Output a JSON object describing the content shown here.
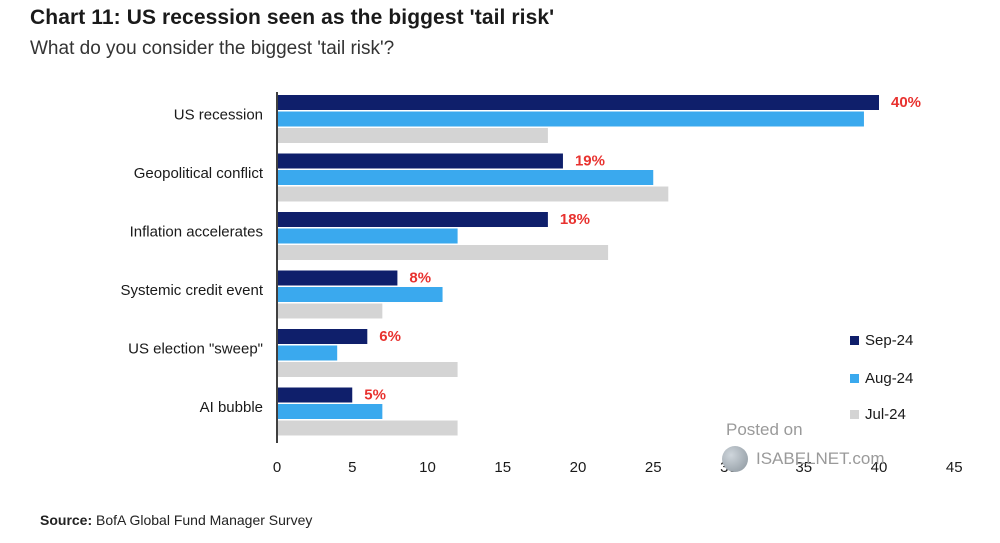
{
  "title": "Chart 11: US recession seen as the biggest 'tail risk'",
  "subtitle": "What do you consider the biggest 'tail risk'?",
  "source_label": "Source:",
  "source_text": "BofA Global Fund Manager Survey",
  "watermark": {
    "line1": "Posted on",
    "line2": "ISABELNET.com"
  },
  "colors": {
    "sep": "#0f1f6b",
    "aug": "#3aa9ee",
    "jul": "#d4d4d4",
    "label_red": "#e8322f"
  },
  "chart_data": {
    "type": "bar",
    "orientation": "horizontal",
    "categories": [
      "US recession",
      "Geopolitical conflict",
      "Inflation accelerates",
      "Systemic credit event",
      "US election \"sweep\"",
      "AI bubble"
    ],
    "series": [
      {
        "name": "Sep-24",
        "values": [
          40,
          19,
          18,
          8,
          6,
          5
        ],
        "data_labels": [
          "40%",
          "19%",
          "18%",
          "8%",
          "6%",
          "5%"
        ]
      },
      {
        "name": "Aug-24",
        "values": [
          39,
          25,
          12,
          11,
          4,
          7
        ]
      },
      {
        "name": "Jul-24",
        "values": [
          18,
          26,
          22,
          7,
          12,
          12
        ]
      }
    ],
    "xlim": [
      0,
      45
    ],
    "xticks": [
      "0",
      "5",
      "10",
      "15",
      "20",
      "25",
      "30",
      "35",
      "40",
      "45"
    ],
    "legend": "bottom-right",
    "grid": false
  }
}
